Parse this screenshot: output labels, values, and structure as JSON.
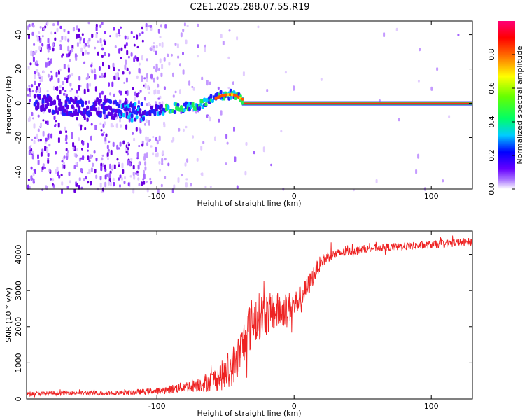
{
  "title": "C2E1.2025.288.07.55.R19",
  "chart_data": [
    {
      "type": "heatmap",
      "xlabel": "Height of straight line (km)",
      "ylabel": "Frequency (Hz)",
      "xlim": [
        -195,
        130
      ],
      "ylim": [
        -50,
        48
      ],
      "xticks": [
        -100,
        0,
        100
      ],
      "yticks": [
        -40,
        -20,
        0,
        20,
        40
      ],
      "colorbar": {
        "label": "Normalized spectral amplitude",
        "range": [
          0.0,
          1.0
        ],
        "ticks": [
          0.0,
          0.2,
          0.4,
          0.6,
          0.8
        ]
      },
      "ridge": {
        "x": [
          -195,
          -160,
          -140,
          -120,
          -100,
          -90,
          -80,
          -70,
          -60,
          -55,
          -50,
          -45,
          -40,
          -35,
          -30,
          -25,
          -20,
          -15,
          -10,
          -5,
          0,
          20,
          60,
          100,
          130
        ],
        "y": [
          0,
          -2,
          -3,
          -5,
          -4,
          -3,
          -2,
          -1,
          2,
          4,
          5,
          5,
          3,
          1,
          0,
          0,
          0,
          -1,
          0,
          0,
          0,
          0,
          0,
          0,
          0
        ]
      }
    },
    {
      "type": "line",
      "xlabel": "Height of straight line (km)",
      "ylabel": "SNR (10 * v/v)",
      "xlim": [
        -195,
        130
      ],
      "ylim": [
        0,
        4650
      ],
      "xticks": [
        -100,
        0,
        100
      ],
      "yticks": [
        0,
        1000,
        2000,
        3000,
        4000
      ],
      "series": [
        {
          "name": "SNR",
          "x": [
            -195,
            -180,
            -160,
            -140,
            -120,
            -100,
            -90,
            -80,
            -70,
            -60,
            -50,
            -45,
            -40,
            -35,
            -30,
            -25,
            -20,
            -15,
            -10,
            -5,
            0,
            5,
            10,
            15,
            20,
            25,
            30,
            40,
            50,
            60,
            70,
            80,
            90,
            100,
            110,
            120,
            130
          ],
          "y": [
            150,
            150,
            170,
            160,
            180,
            220,
            270,
            330,
            400,
            500,
            700,
            900,
            1200,
            1700,
            2200,
            2300,
            2350,
            2400,
            2450,
            2500,
            2600,
            2800,
            3100,
            3500,
            3800,
            3950,
            4000,
            4080,
            4150,
            4180,
            4200,
            4220,
            4240,
            4270,
            4300,
            4330,
            4360
          ],
          "noise_amplitude": [
            60,
            60,
            60,
            60,
            70,
            90,
            120,
            150,
            200,
            300,
            450,
            550,
            650,
            700,
            700,
            650,
            600,
            550,
            500,
            450,
            400,
            350,
            300,
            250,
            200,
            160,
            140,
            120,
            110,
            110,
            110,
            110,
            110,
            110,
            110,
            110,
            110
          ]
        }
      ]
    }
  ]
}
